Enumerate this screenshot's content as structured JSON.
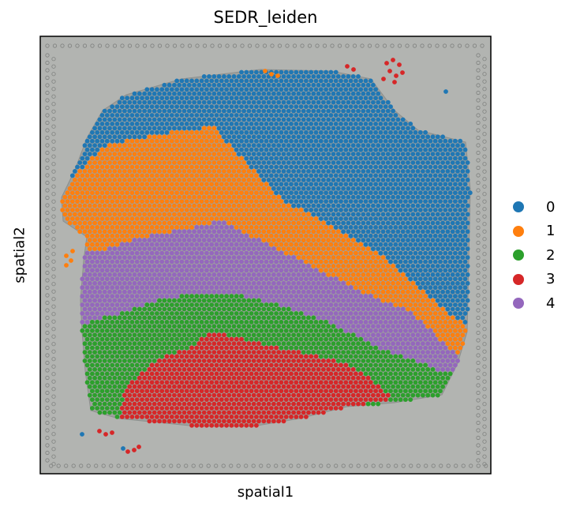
{
  "chart_data": {
    "type": "scatter",
    "title": "SEDR_leiden",
    "xlabel": "spatial1",
    "ylabel": "spatial2",
    "background": "tissue-histology-image",
    "x_ticks": [],
    "y_ticks": [],
    "grid": false,
    "legend_position": "right",
    "series": [
      {
        "name": "0",
        "color": "#1f77b4"
      },
      {
        "name": "1",
        "color": "#ff7f0e"
      },
      {
        "name": "2",
        "color": "#2ca02c"
      },
      {
        "name": "3",
        "color": "#d62728"
      },
      {
        "name": "4",
        "color": "#9467bd"
      }
    ]
  }
}
